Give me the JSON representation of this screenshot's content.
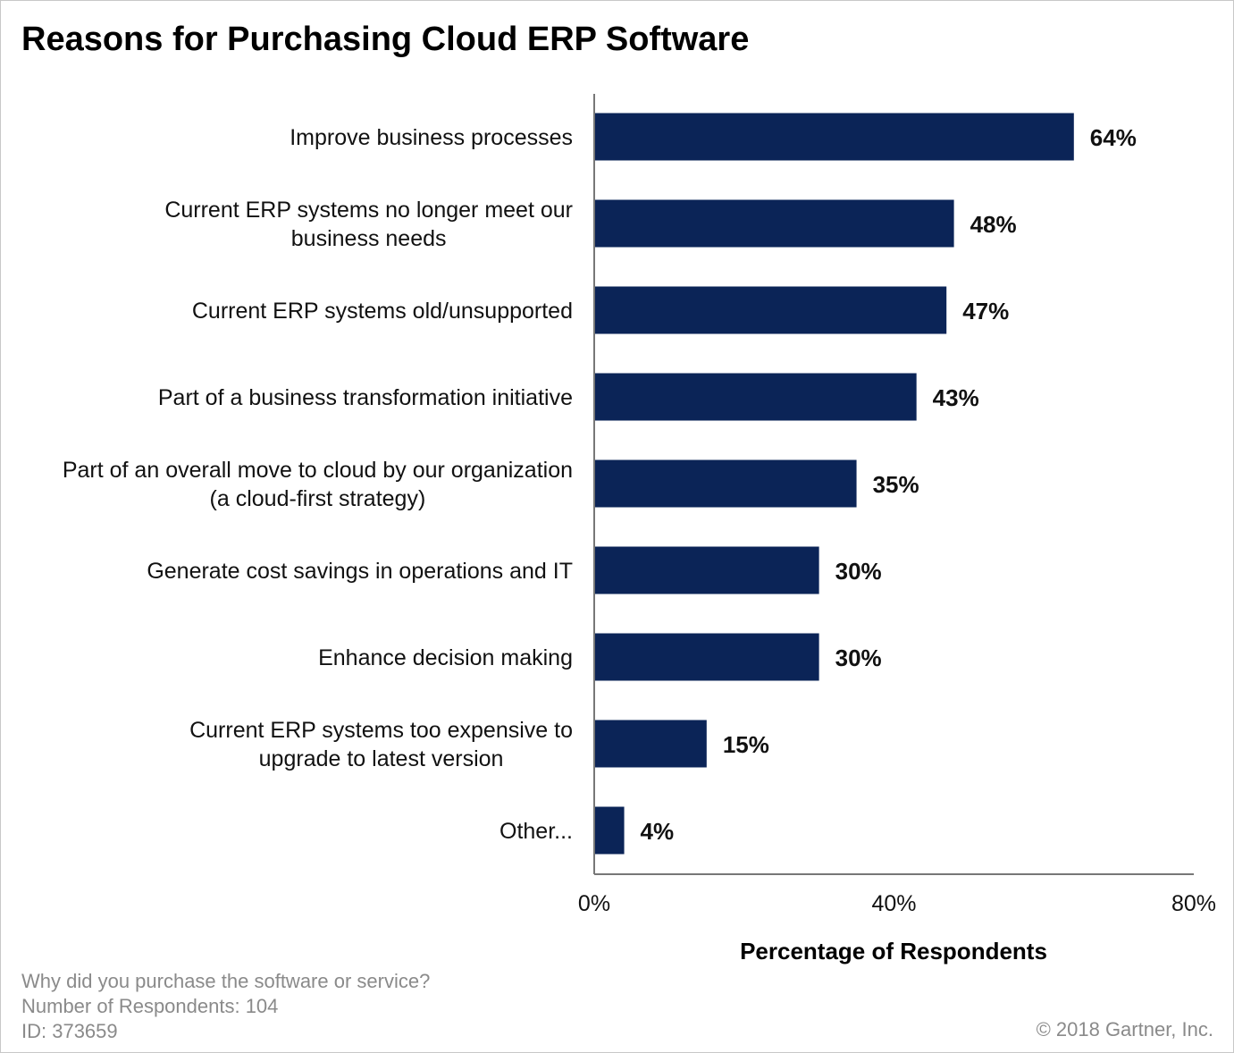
{
  "chart_data": {
    "type": "bar",
    "orientation": "horizontal",
    "title": "Reasons for Purchasing Cloud ERP Software",
    "categories": [
      [
        "Improve business processes"
      ],
      [
        "Current ERP systems no longer meet our",
        "business needs"
      ],
      [
        "Current ERP systems old/unsupported"
      ],
      [
        "Part of a business transformation initiative"
      ],
      [
        "Part of an overall move to cloud by our organization",
        "(a cloud-first strategy)"
      ],
      [
        "Generate cost savings in operations and IT"
      ],
      [
        "Enhance decision making"
      ],
      [
        "Current ERP systems too expensive to",
        "upgrade to latest version"
      ],
      [
        "Other..."
      ]
    ],
    "values": [
      64,
      48,
      47,
      43,
      35,
      30,
      30,
      15,
      4
    ],
    "data_labels": [
      "64%",
      "48%",
      "47%",
      "43%",
      "35%",
      "30%",
      "30%",
      "15%",
      "4%"
    ],
    "xlabel": "Percentage of Respondents",
    "ylabel": "",
    "xlim": [
      0,
      80
    ],
    "x_ticks": [
      "0%",
      "40%",
      "80%"
    ],
    "grid": false,
    "bar_color": "#0b2457"
  },
  "footer": {
    "question": "Why did you purchase the software or service?",
    "respondents": "Number of Respondents:  104",
    "id": "ID: 373659",
    "copyright": "© 2018 Gartner, Inc."
  }
}
